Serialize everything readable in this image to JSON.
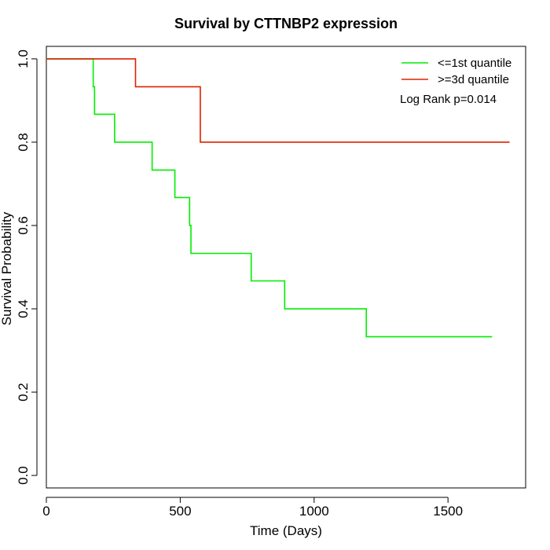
{
  "chart_data": {
    "type": "line",
    "step": true,
    "title": "Survival by CTTNBP2 expression",
    "xlabel": "Time (Days)",
    "ylabel": "Survival Probability",
    "xlim": [
      0,
      1790
    ],
    "ylim": [
      -0.03,
      1.03
    ],
    "x_ticks": [
      0,
      500,
      1000,
      1500
    ],
    "y_ticks": [
      0.0,
      0.2,
      0.4,
      0.6,
      0.8,
      1.0
    ],
    "y_tick_labels": [
      "0.0",
      "0.2",
      "0.4",
      "0.6",
      "0.8",
      "1.0"
    ],
    "grid": false,
    "legend_position": "top-right",
    "annotation": "Log Rank p=0.014",
    "series": [
      {
        "name": "<=1st quantile",
        "color": "#00ee00",
        "x": [
          0,
          170,
          175,
          180,
          255,
          395,
          480,
          535,
          540,
          765,
          890,
          1195,
          1665
        ],
        "y": [
          1.0,
          1.0,
          0.933,
          0.867,
          0.8,
          0.733,
          0.667,
          0.6,
          0.533,
          0.467,
          0.4,
          0.333,
          0.333
        ]
      },
      {
        "name": ">=3d quantile",
        "color": "#dd2200",
        "x": [
          0,
          330,
          333,
          575,
          1730
        ],
        "y": [
          1.0,
          1.0,
          0.933,
          0.8,
          0.8
        ]
      }
    ]
  }
}
